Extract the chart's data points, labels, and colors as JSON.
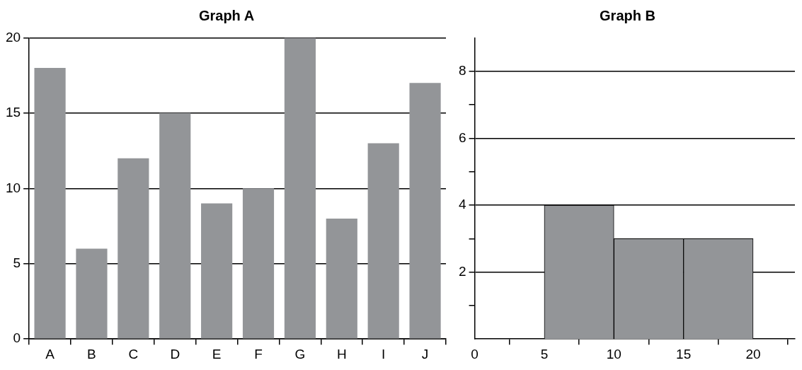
{
  "chart_data": [
    {
      "type": "bar",
      "title": "Graph A",
      "categories": [
        "A",
        "B",
        "C",
        "D",
        "E",
        "F",
        "G",
        "H",
        "I",
        "J"
      ],
      "values": [
        18,
        6,
        12,
        15,
        9,
        10,
        20,
        8,
        13,
        17
      ],
      "color": "#939598",
      "ylim": [
        0,
        20
      ],
      "yticks": [
        0,
        5,
        10,
        15,
        20
      ],
      "grid": "y"
    },
    {
      "type": "histogram",
      "title": "Graph B",
      "bins": [
        5,
        10,
        15,
        20
      ],
      "values": [
        4,
        3,
        3
      ],
      "color": "#939598",
      "xlim": [
        0,
        23
      ],
      "xticks": [
        0,
        5,
        10,
        15,
        20
      ],
      "ylim": [
        0,
        9
      ],
      "yticks": [
        {
          "value": 1,
          "label": null
        },
        2,
        {
          "value": 3,
          "label": null
        },
        4,
        {
          "value": 5,
          "label": null
        },
        6,
        {
          "value": 7,
          "label": null
        },
        8
      ],
      "grid": "y"
    }
  ]
}
